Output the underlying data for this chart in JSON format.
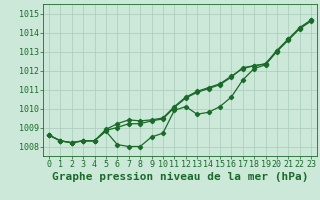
{
  "title": "Graphe pression niveau de la mer (hPa)",
  "bg_color": "#cce8d8",
  "grid_color": "#aaccbb",
  "line_color": "#1a6b2a",
  "ylim": [
    1007.5,
    1015.5
  ],
  "xlim": [
    -0.5,
    23.5
  ],
  "xticks": [
    0,
    1,
    2,
    3,
    4,
    5,
    6,
    7,
    8,
    9,
    10,
    11,
    12,
    13,
    14,
    15,
    16,
    17,
    18,
    19,
    20,
    21,
    22,
    23
  ],
  "yticks": [
    1008,
    1009,
    1010,
    1011,
    1012,
    1013,
    1014,
    1015
  ],
  "line1": [
    1008.6,
    1008.3,
    1008.2,
    1008.3,
    1008.3,
    1008.8,
    1008.1,
    1008.0,
    1008.0,
    1008.5,
    1008.7,
    1009.9,
    1010.1,
    1009.7,
    1009.8,
    1010.1,
    1010.6,
    1011.5,
    1012.1,
    1012.3,
    1013.0,
    1013.6,
    1014.2,
    1014.6
  ],
  "line2": [
    1008.6,
    1008.3,
    1008.2,
    1008.3,
    1008.3,
    1008.9,
    1009.2,
    1009.4,
    1009.35,
    1009.4,
    1009.5,
    1010.1,
    1010.6,
    1010.9,
    1011.1,
    1011.3,
    1011.7,
    1012.1,
    1012.25,
    1012.35,
    1013.05,
    1013.65,
    1014.25,
    1014.65
  ],
  "line3": [
    1008.6,
    1008.3,
    1008.2,
    1008.3,
    1008.3,
    1008.85,
    1009.0,
    1009.2,
    1009.2,
    1009.35,
    1009.45,
    1010.05,
    1010.55,
    1010.85,
    1011.05,
    1011.25,
    1011.65,
    1012.15,
    1012.25,
    1012.35,
    1013.05,
    1013.65,
    1014.25,
    1014.65
  ],
  "title_fontsize": 8,
  "tick_fontsize": 6
}
